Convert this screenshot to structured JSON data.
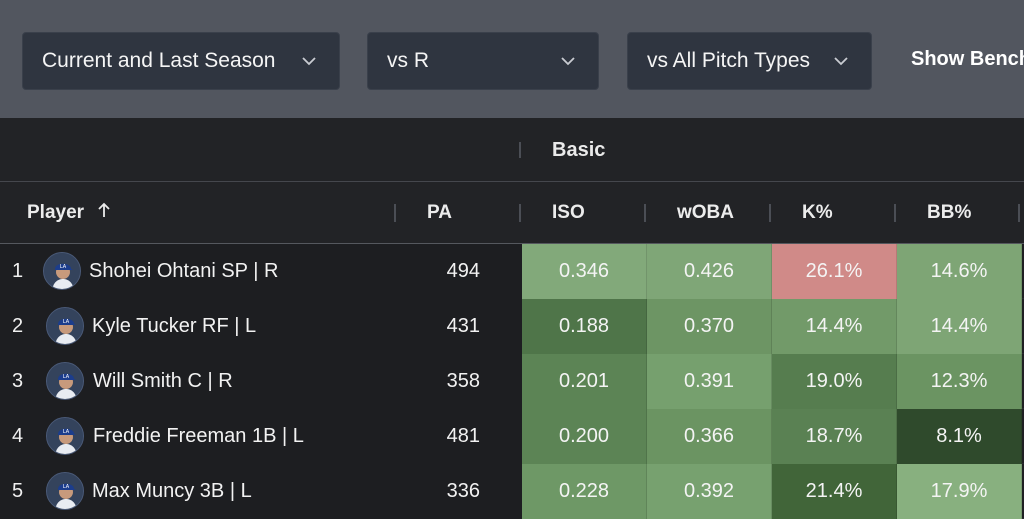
{
  "filters": {
    "season": "Current and Last Season",
    "handedness": "vs R",
    "pitch_types": "vs All Pitch Types",
    "show_bench": "Show Bench"
  },
  "table": {
    "group_label": "Basic",
    "headers": {
      "player": "Player",
      "pa": "PA",
      "iso": "ISO",
      "woba": "wOBA",
      "k_pct": "K%",
      "bb_pct": "BB%"
    },
    "rows": [
      {
        "rank": "1",
        "name": "Shohei Ohtani SP | R",
        "pa": "494",
        "iso": "0.346",
        "woba": "0.426",
        "k_pct": "26.1%",
        "bb_pct": "14.6%",
        "colors": {
          "iso": "#82a97a",
          "woba": "#7fa677",
          "k_pct": "#d08a88",
          "bb_pct": "#7ea575"
        }
      },
      {
        "rank": "2",
        "name": "Kyle Tucker RF | L",
        "pa": "431",
        "iso": "0.188",
        "woba": "0.370",
        "k_pct": "14.4%",
        "bb_pct": "14.4%",
        "colors": {
          "iso": "#4f7549",
          "woba": "#6d9564",
          "k_pct": "#729a69",
          "bb_pct": "#7ea575"
        }
      },
      {
        "rank": "3",
        "name": "Will Smith C | R",
        "pa": "358",
        "iso": "0.201",
        "woba": "0.391",
        "k_pct": "19.0%",
        "bb_pct": "12.3%",
        "colors": {
          "iso": "#5c8455",
          "woba": "#76a06e",
          "k_pct": "#567d4f",
          "bb_pct": "#6b9462"
        }
      },
      {
        "rank": "4",
        "name": "Freddie Freeman 1B | L",
        "pa": "481",
        "iso": "0.200",
        "woba": "0.366",
        "k_pct": "18.7%",
        "bb_pct": "8.1%",
        "colors": {
          "iso": "#5c8455",
          "woba": "#6b9462",
          "k_pct": "#5a8153",
          "bb_pct": "#2f4a2c"
        }
      },
      {
        "rank": "5",
        "name": "Max Muncy 3B | L",
        "pa": "336",
        "iso": "0.228",
        "woba": "0.392",
        "k_pct": "21.4%",
        "bb_pct": "17.9%",
        "colors": {
          "iso": "#6e9866",
          "woba": "#77a16f",
          "k_pct": "#416539",
          "bb_pct": "#88b07f"
        }
      }
    ]
  }
}
